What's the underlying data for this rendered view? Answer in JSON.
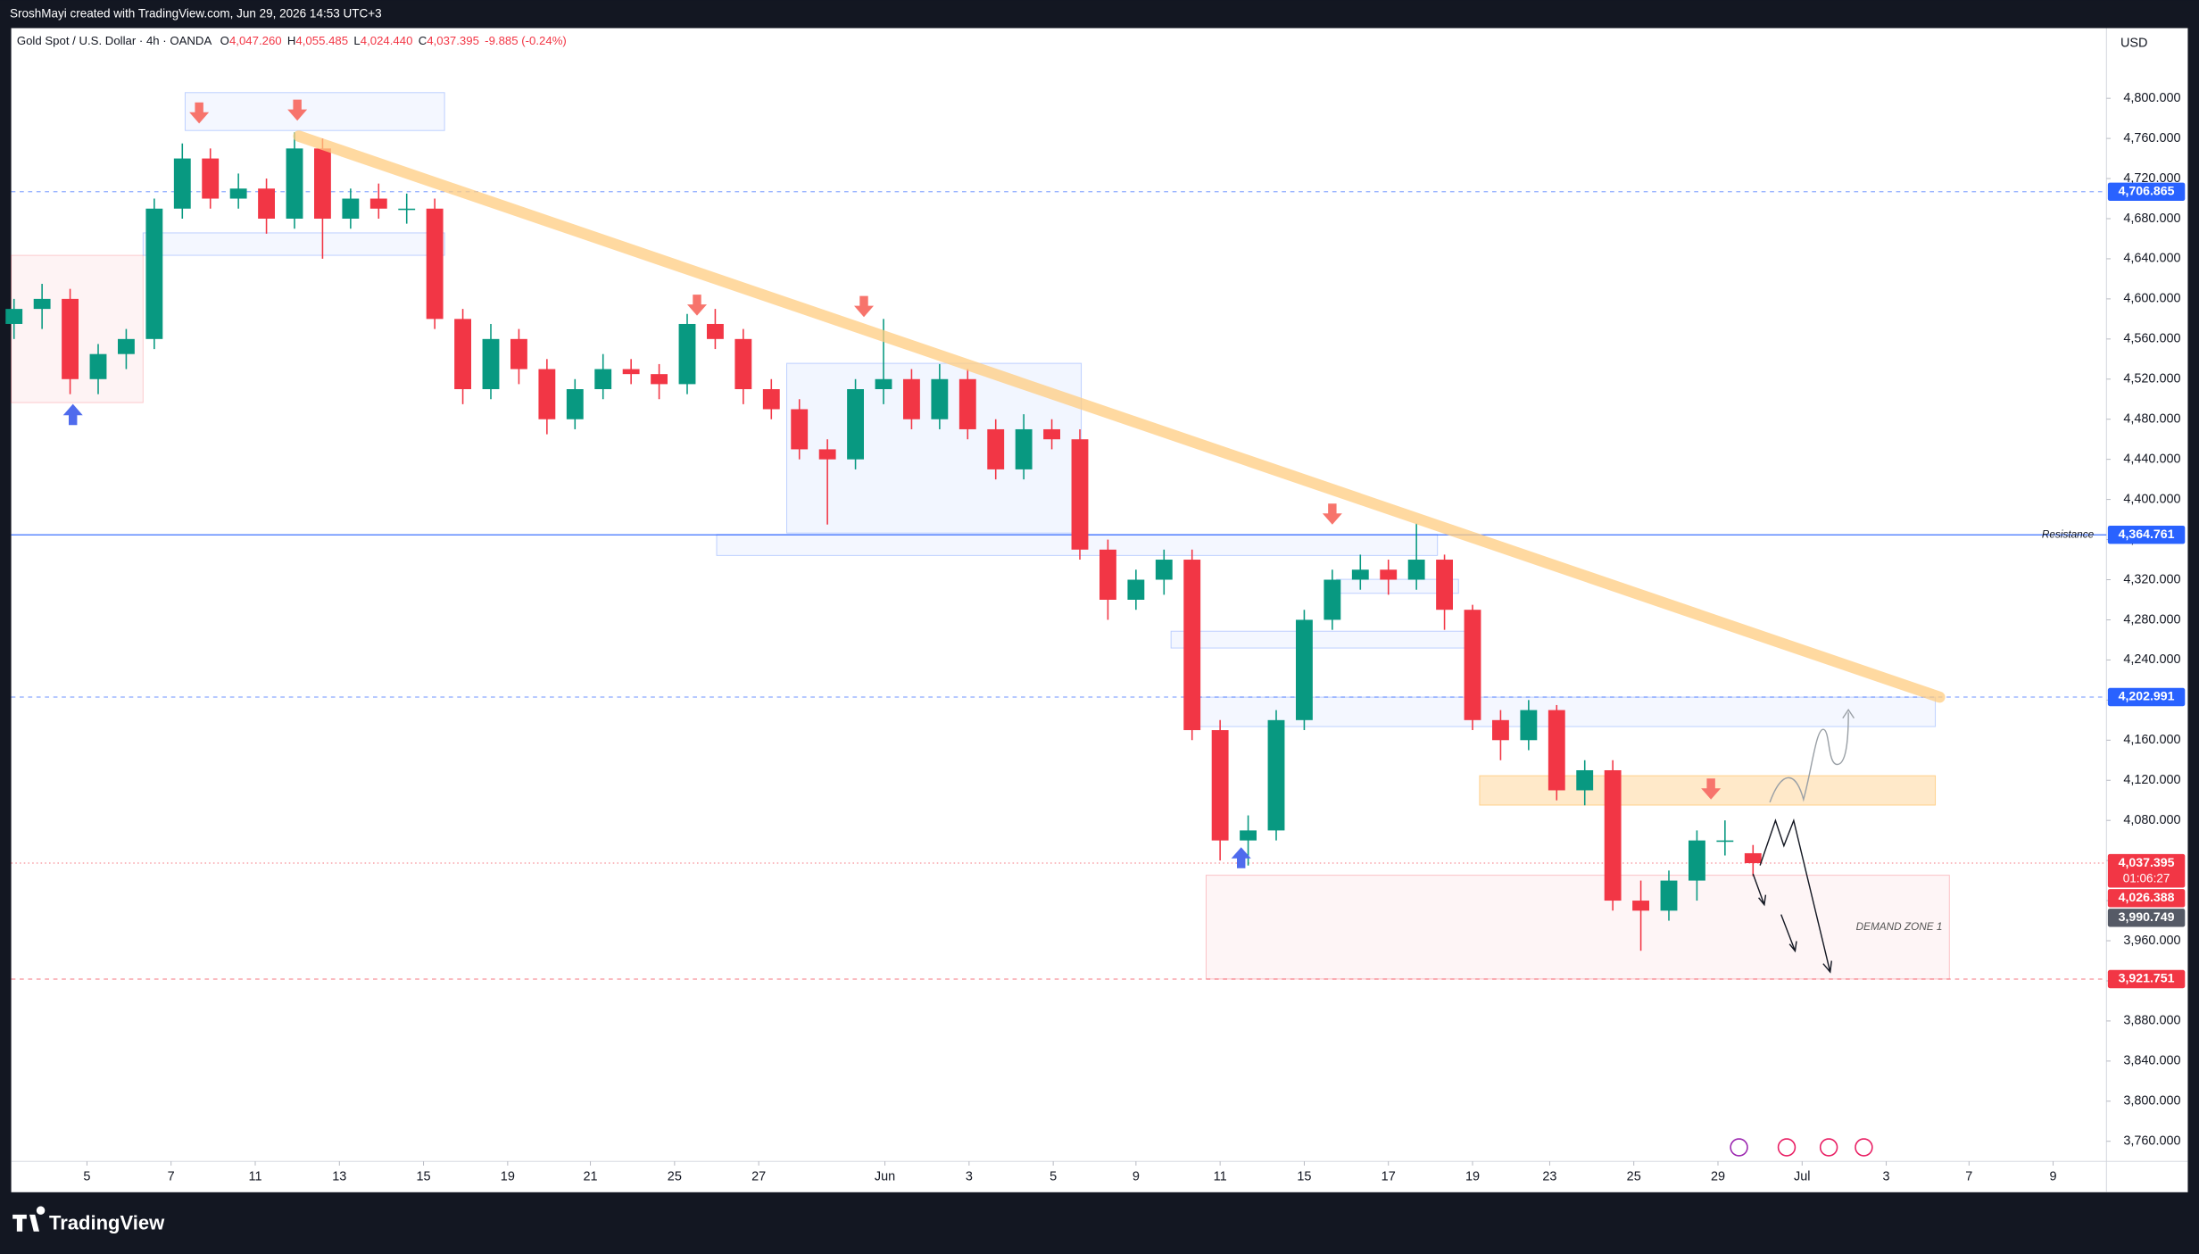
{
  "header": {
    "attribution": "SroshMayi created with TradingView.com, Jun 29, 2026 14:53 UTC+3",
    "symbol": "Gold Spot / U.S. Dollar · 4h · OANDA",
    "ohlc": [
      [
        "O",
        "4,047.260"
      ],
      [
        "H",
        "4,055.485"
      ],
      [
        "L",
        "4,024.440"
      ],
      [
        "C",
        "4,037.395"
      ]
    ],
    "change": "-9.885 (-0.24%)",
    "currency": "USD"
  },
  "footer": {
    "brand": "TradingView"
  },
  "chart_data": {
    "type": "candlestick",
    "up_color": "#089981",
    "down_color": "#f23645",
    "open": [
      4575,
      4590,
      4600,
      4520,
      4545,
      4560,
      4690,
      4740,
      4700,
      4710,
      4680,
      4750,
      4680,
      4700,
      4690,
      4690,
      4580,
      4510,
      4560,
      4530,
      4480,
      4510,
      4530,
      4525,
      4515,
      4575,
      4560,
      4510,
      4490,
      4450,
      4440,
      4510,
      4520,
      4480,
      4520,
      4470,
      4430,
      4470,
      4460,
      4350,
      4300,
      4320,
      4340,
      4170,
      4060,
      4070,
      4180,
      4280,
      4320,
      4330,
      4320,
      4340,
      4290,
      4180,
      4160,
      4190,
      4110,
      4130,
      4000,
      3990,
      4020,
      4060,
      4047.26
    ],
    "high": [
      4600,
      4615,
      4610,
      4555,
      4570,
      4700,
      4755,
      4750,
      4725,
      4720,
      4766,
      4760,
      4710,
      4715,
      4705,
      4700,
      4590,
      4575,
      4570,
      4540,
      4520,
      4545,
      4540,
      4535,
      4585,
      4590,
      4570,
      4520,
      4500,
      4460,
      4520,
      4580,
      4530,
      4535,
      4530,
      4480,
      4485,
      4480,
      4470,
      4360,
      4330,
      4350,
      4350,
      4180,
      4085,
      4190,
      4290,
      4330,
      4345,
      4340,
      4376,
      4345,
      4295,
      4190,
      4200,
      4195,
      4140,
      4140,
      4020,
      4030,
      4070,
      4080,
      4055.485
    ],
    "low": [
      4560,
      4570,
      4505,
      4505,
      4530,
      4550,
      4680,
      4690,
      4690,
      4665,
      4670,
      4640,
      4670,
      4680,
      4675,
      4570,
      4495,
      4500,
      4515,
      4465,
      4470,
      4500,
      4515,
      4500,
      4505,
      4550,
      4495,
      4480,
      4440,
      4375,
      4430,
      4495,
      4470,
      4470,
      4460,
      4420,
      4420,
      4450,
      4340,
      4280,
      4290,
      4305,
      4160,
      4040,
      4035,
      4060,
      4170,
      4270,
      4310,
      4305,
      4310,
      4270,
      4170,
      4140,
      4150,
      4100,
      4095,
      3990,
      3950,
      3980,
      4000,
      4045,
      4024.44
    ],
    "close": [
      4590,
      4600,
      4520,
      4545,
      4560,
      4690,
      4740,
      4700,
      4710,
      4680,
      4750,
      4680,
      4700,
      4690,
      4690,
      4580,
      4510,
      4560,
      4530,
      4480,
      4510,
      4530,
      4525,
      4515,
      4575,
      4560,
      4510,
      4490,
      4450,
      4440,
      4510,
      4520,
      4480,
      4520,
      4470,
      4430,
      4470,
      4460,
      4350,
      4300,
      4320,
      4340,
      4170,
      4060,
      4070,
      4180,
      4280,
      4320,
      4330,
      4320,
      4340,
      4290,
      4180,
      4160,
      4190,
      4110,
      4130,
      4000,
      3990,
      4020,
      4060,
      4060,
      4037.395
    ],
    "xlim": [
      -0.1,
      74.6
    ],
    "xticks": [
      {
        "value": 2.6,
        "label": "5"
      },
      {
        "value": 5.6,
        "label": "7"
      },
      {
        "value": 8.6,
        "label": "11"
      },
      {
        "value": 11.6,
        "label": "13"
      },
      {
        "value": 14.6,
        "label": "15"
      },
      {
        "value": 17.6,
        "label": "19"
      },
      {
        "value": 20.55,
        "label": "21"
      },
      {
        "value": 23.55,
        "label": "25"
      },
      {
        "value": 26.55,
        "label": "27"
      },
      {
        "value": 31.05,
        "label": "Jun"
      },
      {
        "value": 34.05,
        "label": "3"
      },
      {
        "value": 37.05,
        "label": "5"
      },
      {
        "value": 40,
        "label": "9"
      },
      {
        "value": 43,
        "label": "11"
      },
      {
        "value": 46,
        "label": "15"
      },
      {
        "value": 49,
        "label": "17"
      },
      {
        "value": 52,
        "label": "19"
      },
      {
        "value": 54.75,
        "label": "23"
      },
      {
        "value": 57.75,
        "label": "25"
      },
      {
        "value": 60.75,
        "label": "29"
      },
      {
        "value": 63.75,
        "label": "Jul"
      },
      {
        "value": 66.75,
        "label": "3"
      },
      {
        "value": 69.7,
        "label": "7"
      },
      {
        "value": 72.7,
        "label": "9"
      }
    ],
    "ylim": [
      3740,
      4870
    ],
    "yticks": [
      {
        "value": 4800,
        "label": "4,800.000"
      },
      {
        "value": 4760,
        "label": "4,760.000"
      },
      {
        "value": 4720,
        "label": "4,720.000"
      },
      {
        "value": 4680,
        "label": "4,680.000"
      },
      {
        "value": 4640,
        "label": "4,640.000"
      },
      {
        "value": 4600,
        "label": "4,600.000"
      },
      {
        "value": 4560,
        "label": "4,560.000"
      },
      {
        "value": 4520,
        "label": "4,520.000"
      },
      {
        "value": 4480,
        "label": "4,480.000"
      },
      {
        "value": 4440,
        "label": "4,440.000"
      },
      {
        "value": 4400,
        "label": "4,400.000"
      },
      {
        "value": 4360,
        "label": "4,360.000"
      },
      {
        "value": 4320,
        "label": "4,320.000"
      },
      {
        "value": 4280,
        "label": "4,280.000"
      },
      {
        "value": 4240,
        "label": "4,240.000"
      },
      {
        "value": 4200,
        "label": "4,200.000"
      },
      {
        "value": 4160,
        "label": "4,160.000"
      },
      {
        "value": 4120,
        "label": "4,120.000"
      },
      {
        "value": 4080,
        "label": "4,080.000"
      },
      {
        "value": 4040,
        "label": "4,040.000"
      },
      {
        "value": 4000,
        "label": "4,000.000"
      },
      {
        "value": 3960,
        "label": "3,960.000"
      },
      {
        "value": 3920,
        "label": "3,920.000"
      },
      {
        "value": 3880,
        "label": "3,880.000"
      },
      {
        "value": 3840,
        "label": "3,840.000"
      },
      {
        "value": 3800,
        "label": "3,800.000"
      },
      {
        "value": 3760,
        "label": "3,760.000"
      }
    ],
    "price_labels": [
      {
        "value": 4706.865,
        "label": "4,706.865",
        "color": "#2962ff",
        "line": "dashed"
      },
      {
        "value": 4364.761,
        "label": "4,364.761",
        "color": "#2962ff",
        "line": "solid",
        "line_label": "Resistance"
      },
      {
        "value": 4202.991,
        "label": "4,202.991",
        "color": "#2962ff",
        "line": "dashed"
      },
      {
        "value": 4037.395,
        "label": "4,037.395",
        "color": "#f23645",
        "line": "dotted",
        "timer": "01:06:27"
      },
      {
        "value": 4026.388,
        "label": "4,026.388",
        "color": "#f23645",
        "line": "none"
      },
      {
        "value": 3990.749,
        "label": "3,990.749",
        "color": "#555a66",
        "line": "none"
      },
      {
        "value": 3921.751,
        "label": "3,921.751",
        "color": "#f23645",
        "line": "dashed"
      }
    ],
    "annotations": {
      "demand_zone": "DEMAND ZONE 1"
    }
  }
}
